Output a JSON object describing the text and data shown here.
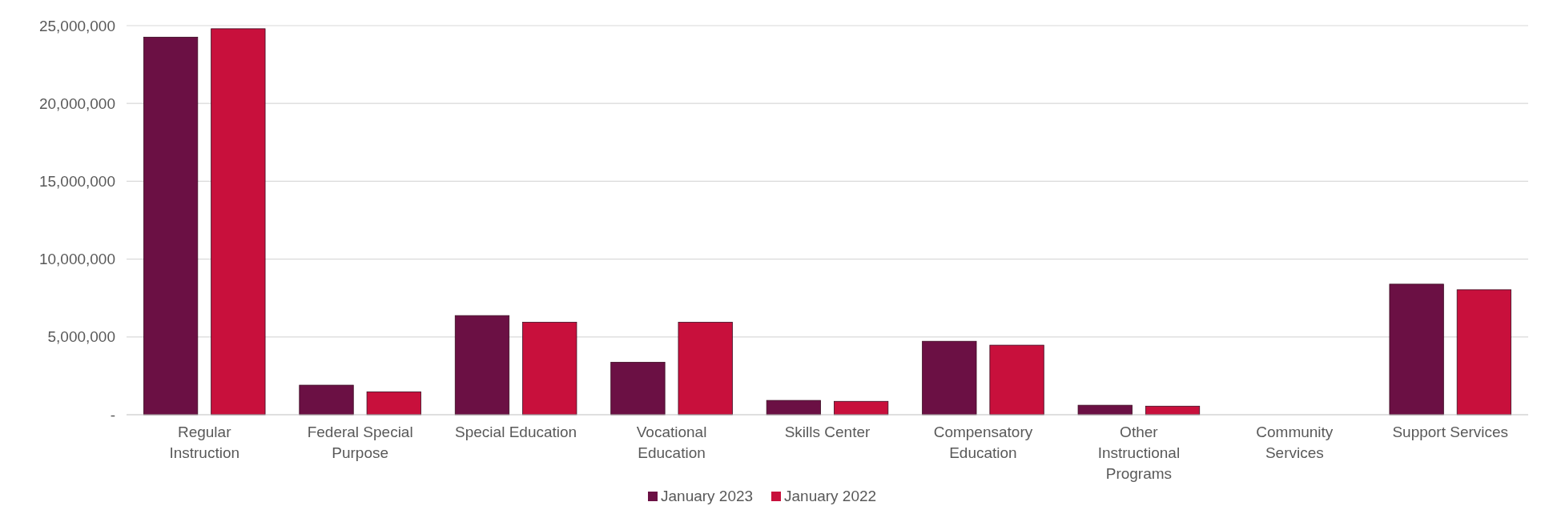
{
  "chart_data": {
    "type": "bar",
    "categories": [
      "Regular Instruction",
      "Federal Special Purpose",
      "Special Education",
      "Vocational Education",
      "Skills Center",
      "Compensatory Education",
      "Other Instructional Programs",
      "Community Services",
      "Support Services"
    ],
    "series": [
      {
        "name": "January 2023",
        "color": "#6b1044",
        "values": [
          24260000,
          1900000,
          6370000,
          3370000,
          920000,
          4720000,
          610000,
          0,
          8390000
        ]
      },
      {
        "name": "January 2022",
        "color": "#c8103c",
        "values": [
          24800000,
          1470000,
          5940000,
          5940000,
          860000,
          4470000,
          550000,
          0,
          8030000
        ]
      }
    ],
    "ylim": [
      0,
      25000000
    ],
    "yticks": [
      {
        "value": 0,
        "label": "-"
      },
      {
        "value": 5000000,
        "label": "5,000,000"
      },
      {
        "value": 10000000,
        "label": "10,000,000"
      },
      {
        "value": 15000000,
        "label": "15,000,000"
      },
      {
        "value": 20000000,
        "label": "20,000,000"
      },
      {
        "value": 25000000,
        "label": "25,000,000"
      }
    ],
    "grid": "y",
    "legend": "bottom"
  }
}
